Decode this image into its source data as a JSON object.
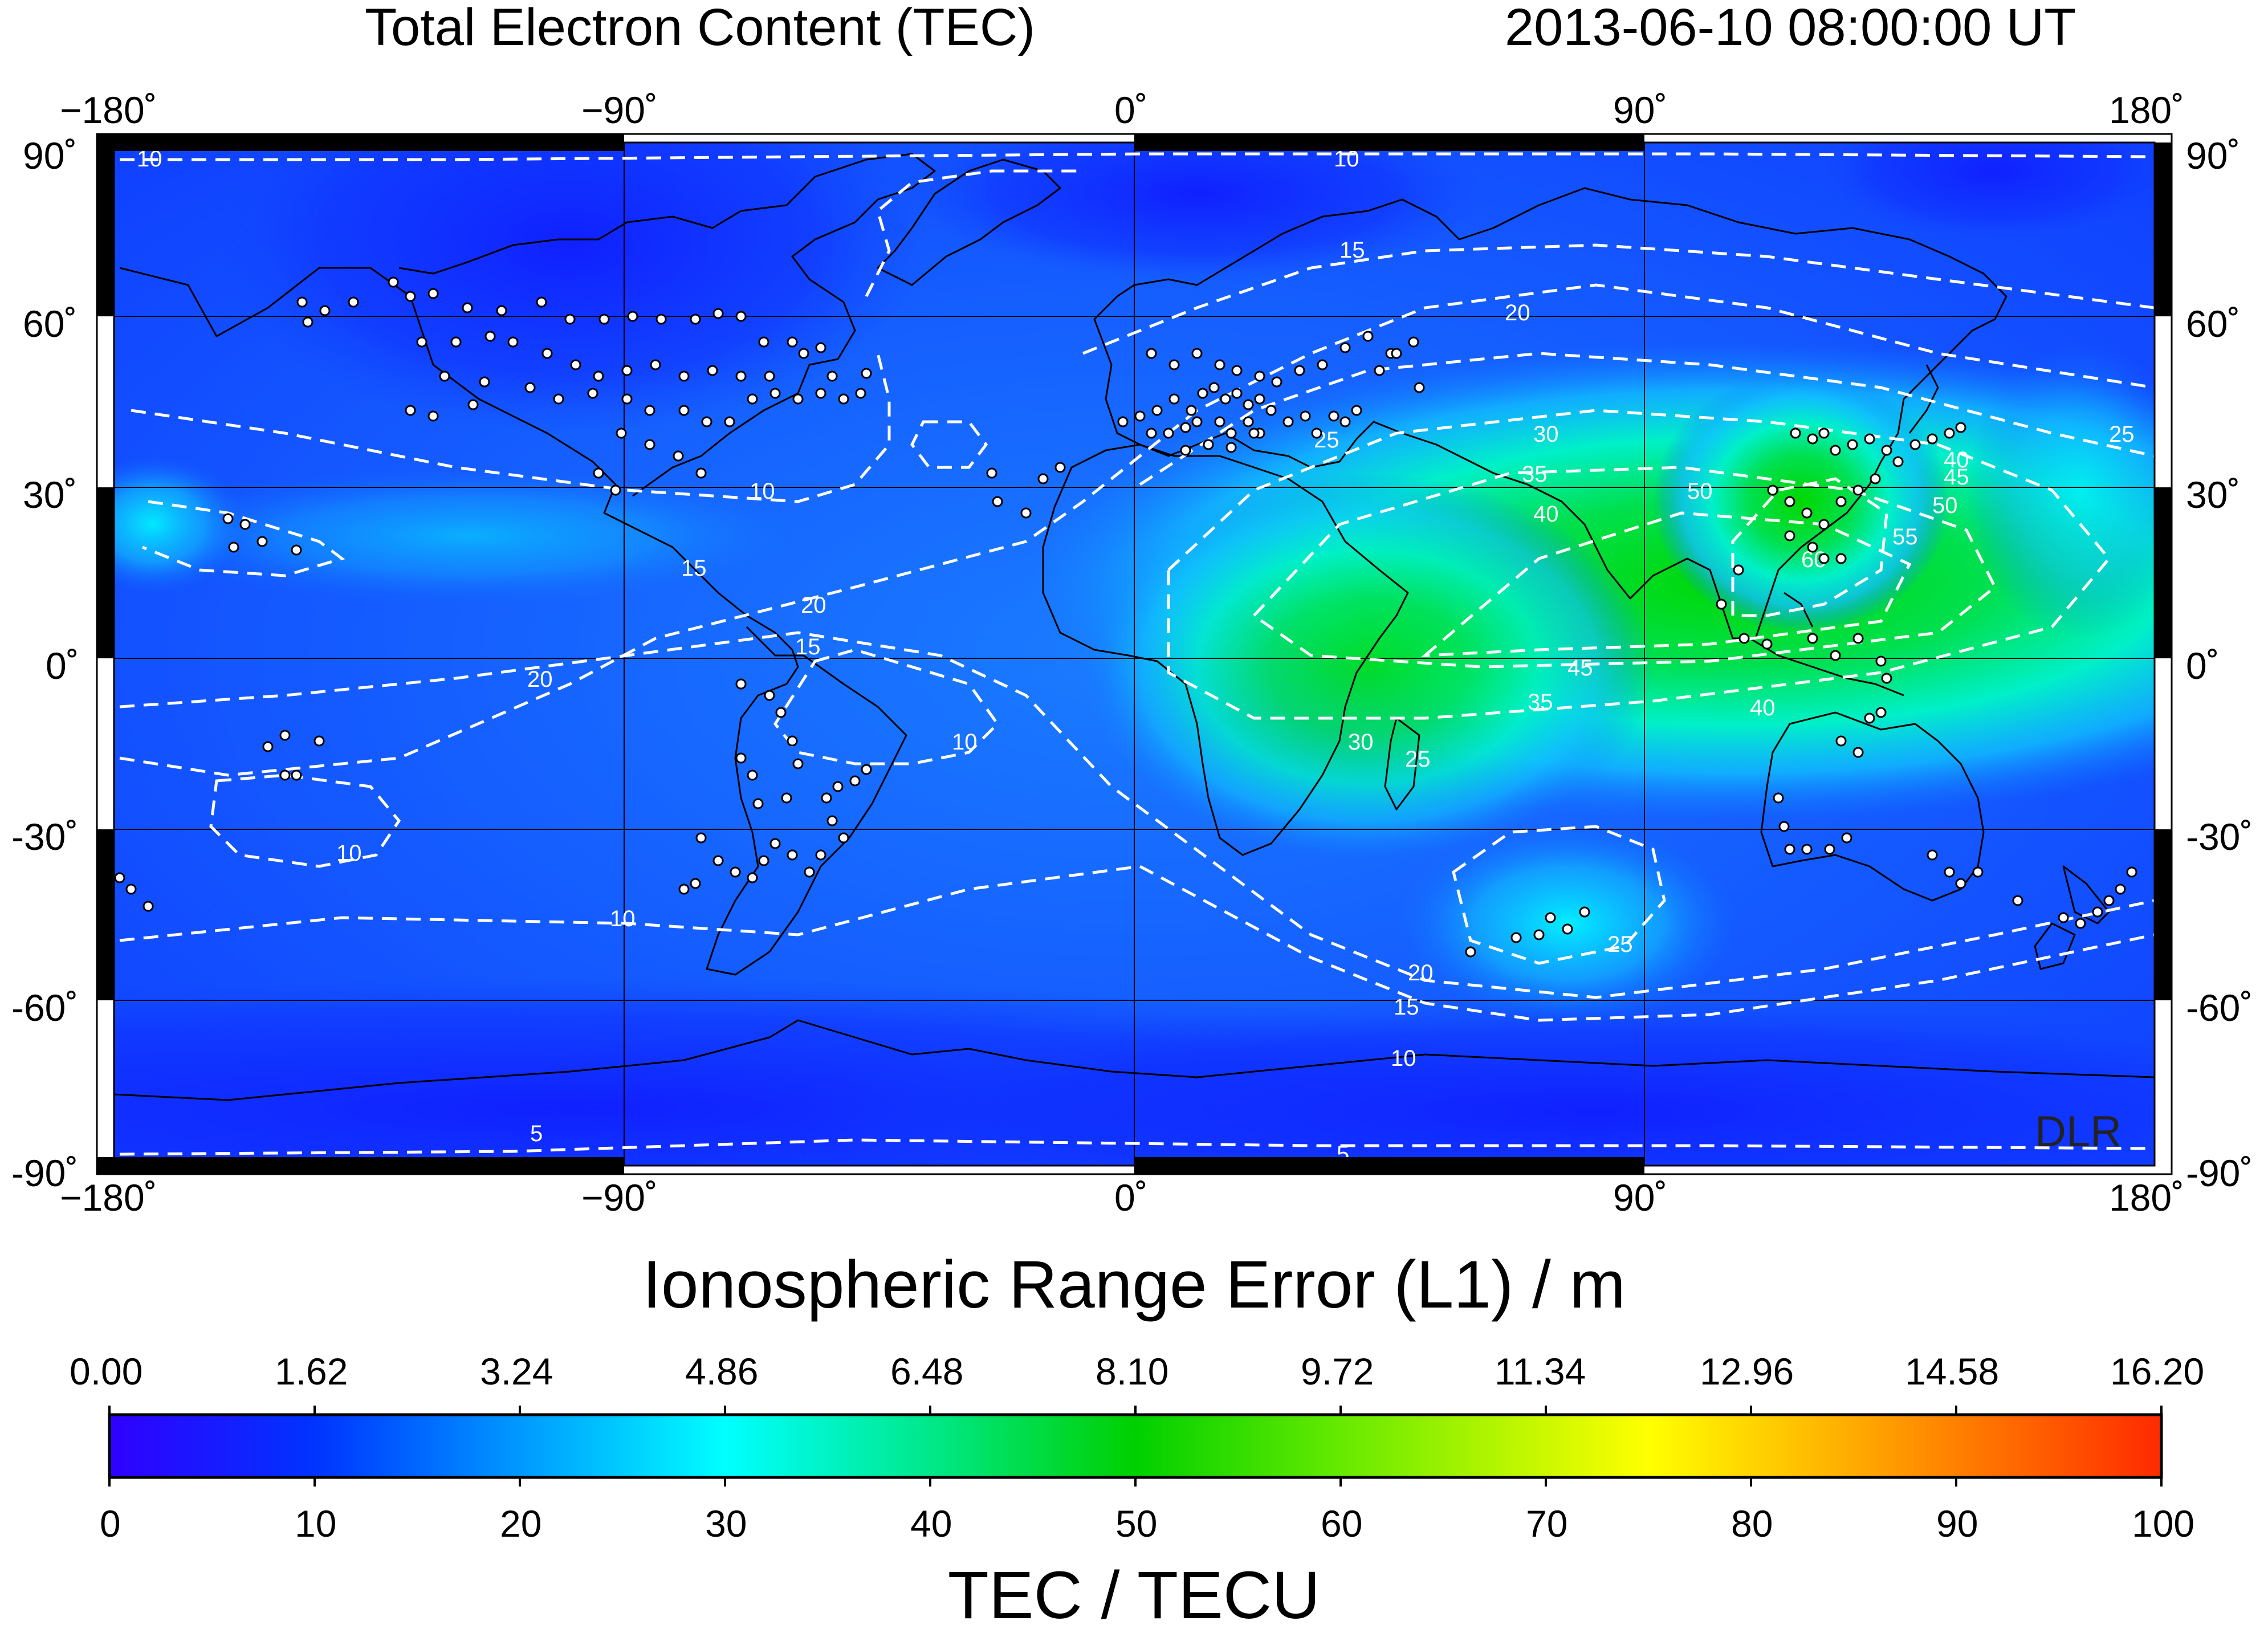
{
  "header": {
    "title": "Total Electron Content (TEC)",
    "datetime": "2013-06-10  08:00:00 UT"
  },
  "map": {
    "lon_ticks": [
      "−180˚",
      "−90˚",
      "0˚",
      "90˚",
      "180˚"
    ],
    "lat_ticks": [
      "90˚",
      "60˚",
      "30˚",
      "0˚",
      "-30˚",
      "-60˚",
      "-90˚"
    ],
    "lon_range": [
      -180,
      180
    ],
    "lat_range": [
      -90,
      90
    ],
    "grid_spacing_deg": 30,
    "credit": "DLR",
    "contour_labels": [
      "10",
      "15",
      "20",
      "25",
      "30",
      "35",
      "40",
      "45",
      "50",
      "55",
      "60",
      "5"
    ],
    "stations_color": "#ffffff",
    "coastline_color": "#000000",
    "contour_color": "#ffffff"
  },
  "colorbar": {
    "title_top": "Ionospheric Range Error (L1) / m",
    "title_bottom": "TEC / TECU",
    "top_labels": [
      "0.00",
      "1.62",
      "3.24",
      "4.86",
      "6.48",
      "8.10",
      "9.72",
      "11.34",
      "12.96",
      "14.58",
      "16.20"
    ],
    "bottom_labels": [
      "0",
      "10",
      "20",
      "30",
      "40",
      "50",
      "60",
      "70",
      "80",
      "90",
      "100"
    ],
    "range_tecu": [
      0,
      100
    ],
    "range_m": [
      0,
      16.2
    ],
    "colormap": [
      "#3000ff",
      "#0030ff",
      "#0a8cff",
      "#00ffff",
      "#00e070",
      "#00d000",
      "#7cf000",
      "#ffff00",
      "#ffa000",
      "#ff3000"
    ]
  }
}
